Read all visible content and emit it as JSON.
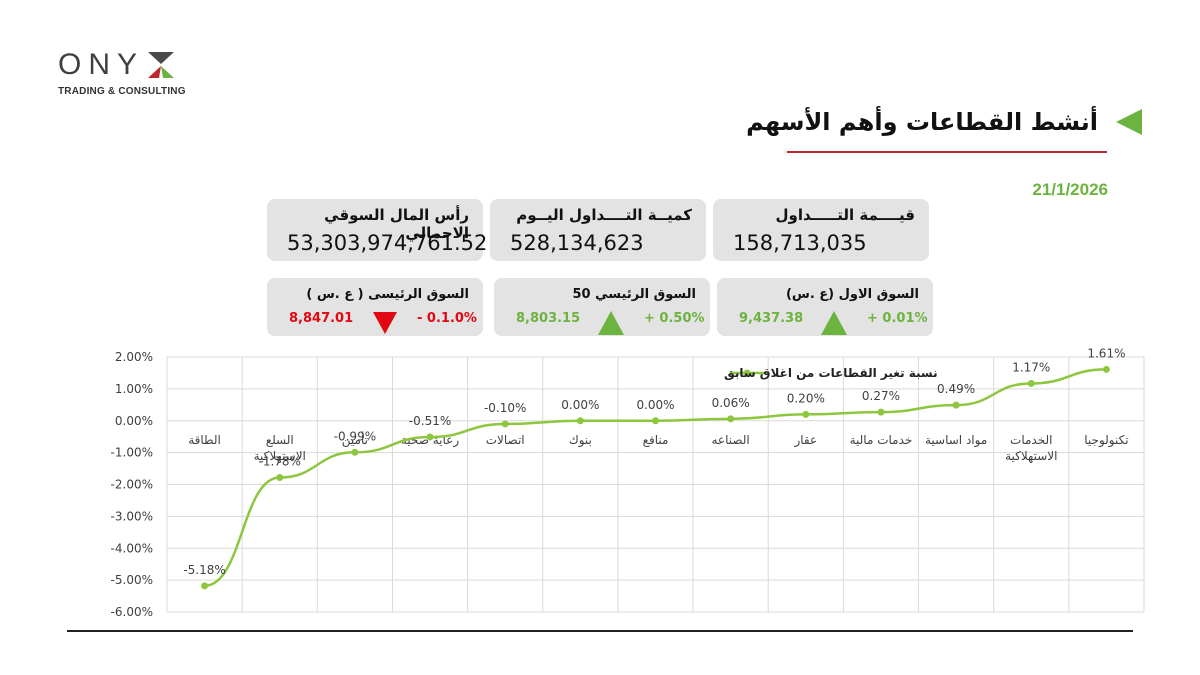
{
  "logo": {
    "word": "ONY",
    "tagline": "TRADING & CONSULTING",
    "colors": {
      "text": "#404040",
      "x_top": "#4a4a4a",
      "x_bottom_left": "#c0262d",
      "x_bottom_right": "#6cb33f"
    }
  },
  "header": {
    "title": "أنشط القطاعات وأهم الأسهم",
    "date": "21/1/2026",
    "accent_color": "#6cb33f",
    "underline_color": "#c0262d"
  },
  "stats": {
    "trade_value": {
      "label": "قيــــمة التـــــداول",
      "value": "158,713,035"
    },
    "trade_volume": {
      "label": "كميــة التــــداول اليــوم",
      "value": "528,134,623"
    },
    "market_cap": {
      "label": "رأس المال السوقي الاجمالي",
      "value": "53,303,974,761.52"
    }
  },
  "indices": {
    "first_market": {
      "label": "السوق الاول (ع .س)",
      "change": "+ 0.01%",
      "value": "9,437.38",
      "direction": "up",
      "color": "#6cb33f"
    },
    "main_50": {
      "label": "السوق الرئيسي 50",
      "change": "+ 0.50%",
      "value": "8,803.15",
      "direction": "up",
      "color": "#6cb33f"
    },
    "main_market": {
      "label": "السوق الرئيسى ( ع .س )",
      "change": "- 0.1.0%",
      "value": "8,847.01",
      "direction": "down",
      "color": "#e30613"
    }
  },
  "chart_data": {
    "type": "line",
    "legend": "نسبة تغير القطاعات من اغلاق سابق",
    "legend_position": "top-center",
    "ylim": [
      -6,
      2
    ],
    "y_ticks": [
      "2.00%",
      "1.00%",
      "0.00%",
      "-1.00%",
      "-2.00%",
      "-3.00%",
      "-4.00%",
      "-5.00%",
      "-6.00%"
    ],
    "grid": true,
    "line_color": "#8dc63f",
    "categories": [
      "الطاقة",
      "السلع الاستهلاكية",
      "تأمين",
      "رعاية صحية",
      "اتصالات",
      "بنوك",
      "منافع",
      "الصناعه",
      "عقار",
      "خدمات مالية",
      "مواد اساسية",
      "الخدمات الاستهلاكية",
      "تكنولوجيا"
    ],
    "category_lines": [
      [
        "الطاقة"
      ],
      [
        "السلع",
        "الاستهلاكية"
      ],
      [
        "تأمين"
      ],
      [
        "رعاية صحية"
      ],
      [
        "اتصالات"
      ],
      [
        "بنوك"
      ],
      [
        "منافع"
      ],
      [
        "الصناعه"
      ],
      [
        "عقار"
      ],
      [
        "خدمات مالية"
      ],
      [
        "مواد اساسية"
      ],
      [
        "الخدمات",
        "الاستهلاكية"
      ],
      [
        "تكنولوجيا"
      ]
    ],
    "values": [
      -5.18,
      -1.78,
      -0.99,
      -0.51,
      -0.1,
      0.0,
      0.0,
      0.06,
      0.2,
      0.27,
      0.49,
      1.17,
      1.61
    ],
    "data_labels": [
      "-5.18%",
      "-1.78%",
      "-0.99%",
      "-0.51%",
      "-0.10%",
      "0.00%",
      "0.00%",
      "0.06%",
      "0.20%",
      "0.27%",
      "0.49%",
      "1.17%",
      "1.61%"
    ]
  }
}
